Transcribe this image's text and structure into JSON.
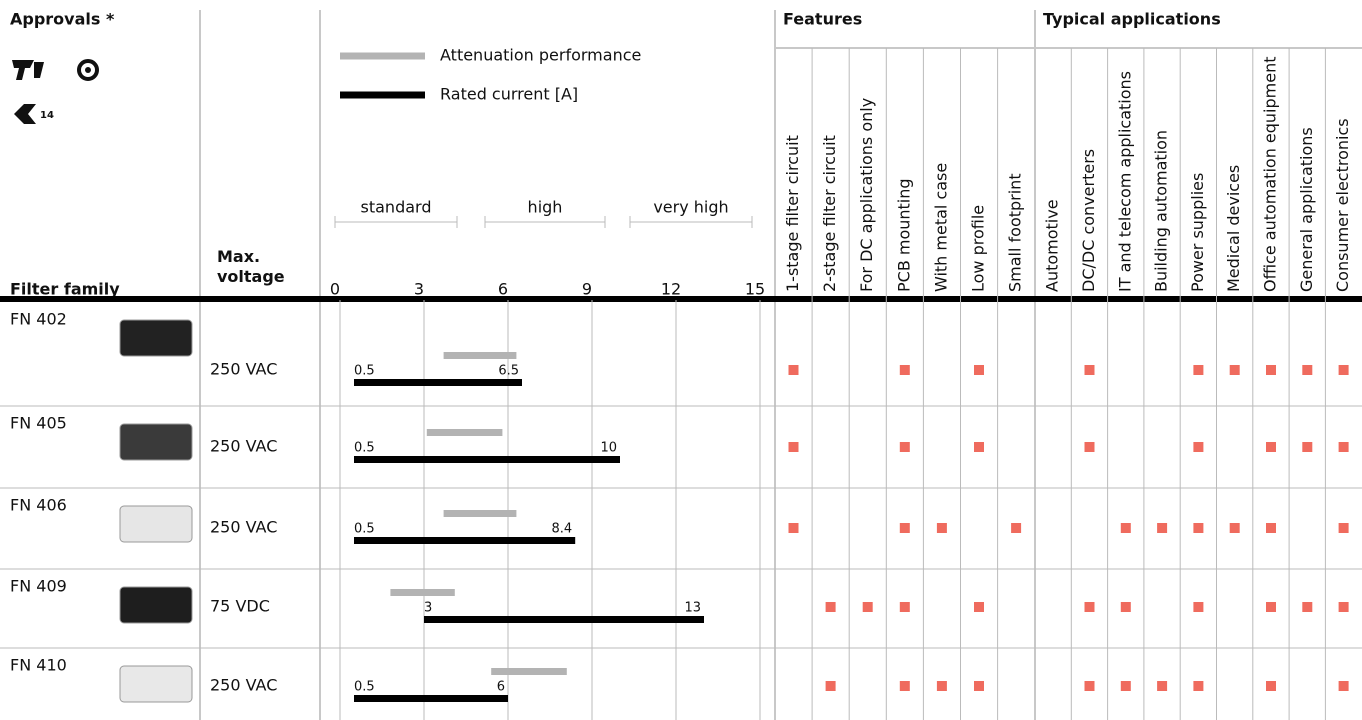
{
  "header": {
    "approvals": "Approvals *",
    "filter_family": "Filter family",
    "max_voltage": "Max. voltage",
    "features": "Features",
    "typical_applications": "Typical applications"
  },
  "chart": {
    "legend": {
      "attenuation": "Attenuation performance",
      "rated_current": "Rated current [A]"
    },
    "ranges": [
      "standard",
      "high",
      "very high"
    ],
    "xlim": [
      0,
      15
    ],
    "xticks": [
      0,
      3,
      6,
      9,
      12,
      15
    ],
    "attenuation_color": "#b3b3b3",
    "rated_color": "#000000",
    "marker_color": "#ef6b5e"
  },
  "feature_columns": [
    "1-stage filter circuit",
    "2-stage filter circuit",
    "For DC applications only",
    "PCB mounting",
    "With metal case",
    "Low profile",
    "Small footprint"
  ],
  "application_columns": [
    "Automotive",
    "DC/DC converters",
    "IT and telecom applications",
    "Building automation",
    "Power supplies",
    "Medical devices",
    "Office automation equipment",
    "General applications",
    "Consumer electronics"
  ],
  "rows": [
    {
      "family": "FN 402",
      "voltage": "250 VAC",
      "attenuation": [
        3.7,
        6.3
      ],
      "rated_current": [
        0.5,
        6.5
      ],
      "features": [
        1,
        0,
        0,
        1,
        0,
        1,
        0
      ],
      "applications": [
        0,
        1,
        0,
        0,
        1,
        1,
        1,
        1,
        1
      ]
    },
    {
      "family": "FN 405",
      "voltage": "250 VAC",
      "attenuation": [
        3.1,
        5.8
      ],
      "rated_current": [
        0.5,
        10
      ],
      "features": [
        1,
        0,
        0,
        1,
        0,
        1,
        0
      ],
      "applications": [
        0,
        1,
        0,
        0,
        1,
        0,
        1,
        1,
        1
      ]
    },
    {
      "family": "FN 406",
      "voltage": "250 VAC",
      "attenuation": [
        3.7,
        6.3
      ],
      "rated_current": [
        0.5,
        8.4
      ],
      "features": [
        1,
        0,
        0,
        1,
        1,
        0,
        1
      ],
      "applications": [
        0,
        0,
        1,
        1,
        1,
        1,
        1,
        0,
        1
      ]
    },
    {
      "family": "FN 409",
      "voltage": "75 VDC",
      "attenuation": [
        1.8,
        4.1
      ],
      "rated_current": [
        3,
        13
      ],
      "features": [
        0,
        1,
        1,
        1,
        0,
        1,
        0
      ],
      "applications": [
        0,
        1,
        1,
        0,
        1,
        0,
        1,
        1,
        1
      ]
    },
    {
      "family": "FN 410",
      "voltage": "250 VAC",
      "attenuation": [
        5.4,
        8.1
      ],
      "rated_current": [
        0.5,
        6
      ],
      "features": [
        0,
        1,
        0,
        1,
        1,
        1,
        0
      ],
      "applications": [
        0,
        1,
        1,
        1,
        1,
        0,
        1,
        0,
        1
      ]
    }
  ]
}
